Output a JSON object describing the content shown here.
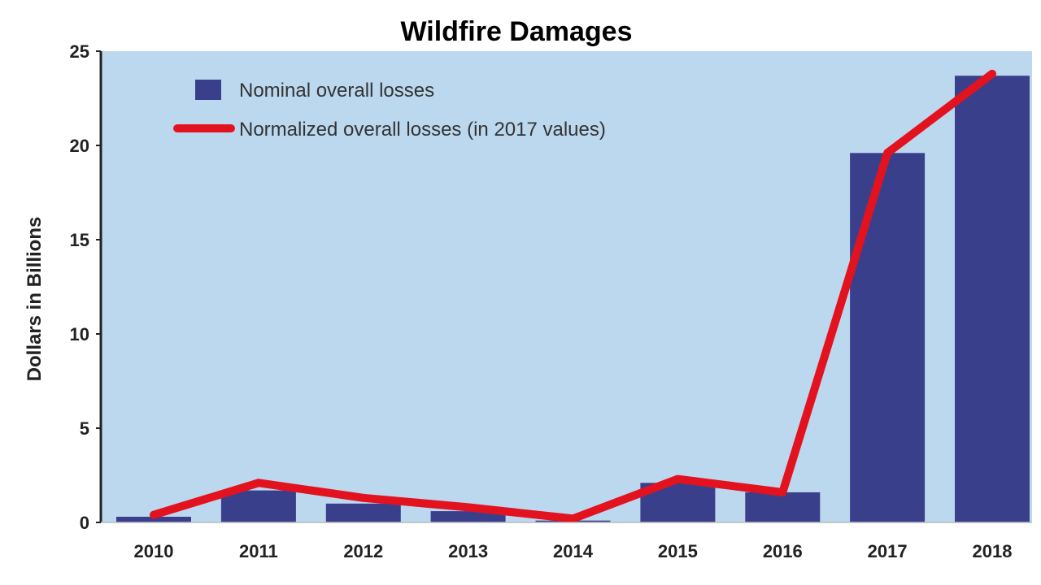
{
  "chart_data": {
    "type": "bar",
    "title": "Wildfire Damages",
    "xlabel": "",
    "ylabel": "Dollars in Billions",
    "ylim": [
      0,
      25
    ],
    "yticks": [
      0,
      5,
      10,
      15,
      20,
      25
    ],
    "categories": [
      "2010",
      "2011",
      "2012",
      "2013",
      "2014",
      "2015",
      "2016",
      "2017",
      "2018"
    ],
    "series": [
      {
        "name": "Nominal overall losses",
        "type": "bar",
        "color": "#3a3f8c",
        "values": [
          0.3,
          1.7,
          1.0,
          0.6,
          0.1,
          2.1,
          1.6,
          19.6,
          23.7
        ]
      },
      {
        "name": "Normalized overall losses (in 2017 values)",
        "type": "line",
        "color": "#e3121f",
        "values": [
          0.4,
          2.1,
          1.3,
          0.8,
          0.2,
          2.3,
          1.6,
          19.6,
          23.8
        ]
      }
    ],
    "plot_background": "#bcd8ee",
    "grid": false,
    "legend_position": "top-left"
  }
}
